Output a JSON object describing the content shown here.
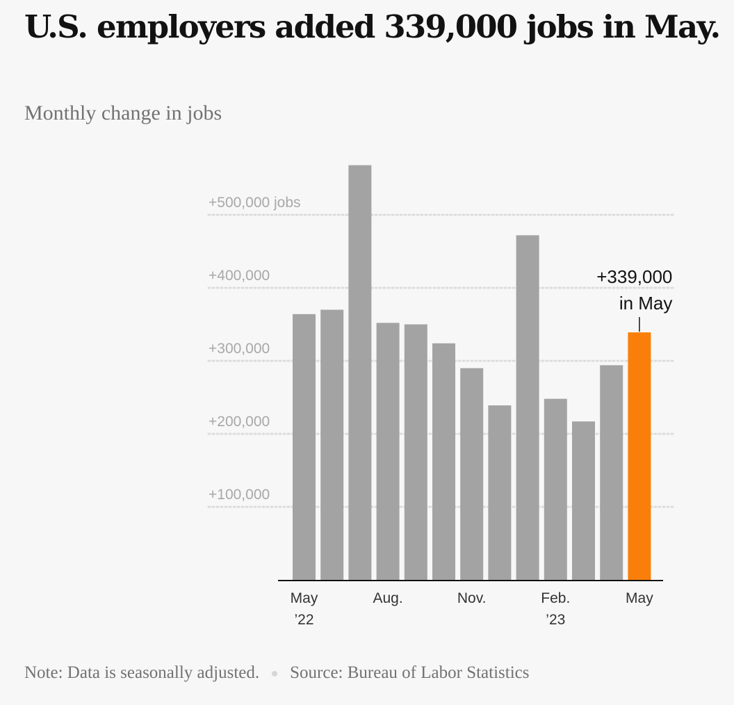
{
  "header": {
    "title": "U.S. employers added 339,000 jobs in May.",
    "subtitle": "Monthly change in jobs"
  },
  "footer": {
    "note": "Note: Data is seasonally adjusted.",
    "source": "Source: Bureau of Labor Statistics"
  },
  "colors": {
    "bar": "#a3a3a3",
    "highlight": "#fa7f0a",
    "gridline": "#dcdcdc",
    "tick_label": "#a8a8a8",
    "annotation": "#121212"
  },
  "chart_data": {
    "type": "bar",
    "title": "U.S. employers added 339,000 jobs in May.",
    "subtitle": "Monthly change in jobs",
    "xlabel": "",
    "ylabel": "",
    "ylim": [
      0,
      565000
    ],
    "grid": true,
    "categories": [
      "May 2022",
      "Jun 2022",
      "Jul 2022",
      "Aug 2022",
      "Sep 2022",
      "Oct 2022",
      "Nov 2022",
      "Dec 2022",
      "Jan 2023",
      "Feb 2023",
      "Mar 2023",
      "Apr 2023",
      "May 2023"
    ],
    "values": [
      364000,
      370000,
      568000,
      352000,
      350000,
      324000,
      290000,
      239000,
      472000,
      248000,
      217000,
      294000,
      339000
    ],
    "highlight_index": 12,
    "y_ticks": [
      {
        "value": 100000,
        "label": "+100,000"
      },
      {
        "value": 200000,
        "label": "+200,000"
      },
      {
        "value": 300000,
        "label": "+300,000"
      },
      {
        "value": 400000,
        "label": "+400,000"
      },
      {
        "value": 500000,
        "label": "+500,000 jobs"
      }
    ],
    "x_tick_labels": [
      {
        "index": 0,
        "lines": [
          "May",
          "’22"
        ]
      },
      {
        "index": 3,
        "lines": [
          "Aug."
        ]
      },
      {
        "index": 6,
        "lines": [
          "Nov."
        ]
      },
      {
        "index": 9,
        "lines": [
          "Feb.",
          "’23"
        ]
      },
      {
        "index": 12,
        "lines": [
          "May"
        ]
      }
    ],
    "annotation": {
      "index": 12,
      "lines": [
        "+339,000",
        "in May"
      ]
    }
  }
}
